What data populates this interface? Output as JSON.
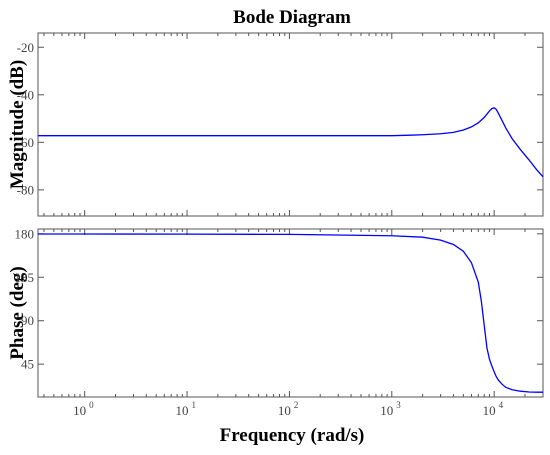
{
  "chart_data": {
    "type": "line",
    "title": "Bode Diagram",
    "xlabel": "Frequency  (rad/s)",
    "xscale": "log",
    "xlim": [
      0.35,
      30000
    ],
    "xticks": [
      {
        "value": 1,
        "base": "10",
        "exp": "0"
      },
      {
        "value": 10,
        "base": "10",
        "exp": "1"
      },
      {
        "value": 100,
        "base": "10",
        "exp": "2"
      },
      {
        "value": 1000,
        "base": "10",
        "exp": "3"
      },
      {
        "value": 10000,
        "base": "10",
        "exp": "4"
      }
    ],
    "grid": false,
    "line_color": "#0000ff",
    "panels": [
      {
        "ylabel": "Magnitude (dB)",
        "ylim": [
          -91,
          -14
        ],
        "yticks": [
          -20,
          -40,
          -60,
          -80
        ],
        "series": [
          {
            "x": [
              0.35,
              1,
              10,
              100,
              1000,
              1500,
              2000,
              3000,
              4000,
              5000,
              6000,
              7000,
              8000,
              9000,
              9500,
              10000,
              10500,
              11000,
              12000,
              13000,
              15000,
              18000,
              22000,
              26000,
              30000
            ],
            "y": [
              -57.2,
              -57.2,
              -57.2,
              -57.2,
              -57.2,
              -57.0,
              -56.8,
              -56.4,
              -55.8,
              -54.8,
              -53.5,
              -51.8,
              -49.5,
              -46.8,
              -45.8,
              -45.5,
              -46.2,
              -47.8,
              -51.0,
              -54.0,
              -58.5,
              -63.0,
              -67.5,
              -71.5,
              -74.5
            ]
          }
        ]
      },
      {
        "ylabel": "Phase (deg)",
        "ylim": [
          11,
          185
        ],
        "yticks": [
          180,
          135,
          90,
          45
        ],
        "series": [
          {
            "x": [
              0.35,
              1,
              10,
              100,
              1000,
              2000,
              3000,
              4000,
              5000,
              6000,
              7000,
              7500,
              8000,
              8500,
              9000,
              9500,
              10000,
              10500,
              11000,
              12000,
              13000,
              15000,
              18000,
              22000,
              26000,
              30000
            ],
            "y": [
              179.8,
              179.8,
              179.7,
              179.4,
              178.0,
              176.5,
              173.5,
              169.0,
              162.0,
              150.0,
              130.0,
              110.0,
              85.0,
              62.0,
              50.0,
              43.0,
              37.0,
              32.0,
              28.5,
              24.0,
              21.0,
              18.5,
              17.0,
              16.2,
              16.0,
              16.0
            ]
          }
        ]
      }
    ]
  }
}
